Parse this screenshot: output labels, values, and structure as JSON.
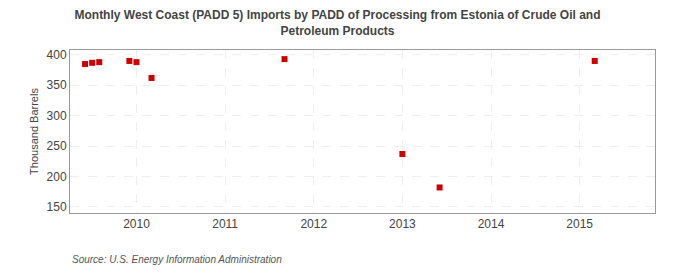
{
  "chart_data": {
    "type": "scatter",
    "title": "Monthly West Coast (PADD 5) Imports by PADD of Processing from Estonia of Crude Oil and\nPetroleum Products",
    "ylabel": "Thousand Barrels",
    "annotations": [
      "Source: U.S. Energy Information Administration"
    ],
    "x": [
      2009.42,
      2009.5,
      2009.58,
      2009.92,
      2010.0,
      2010.17,
      2011.67,
      2013.0,
      2013.42,
      2015.17
    ],
    "values": [
      385,
      387,
      388,
      390,
      388,
      362,
      393,
      237,
      182,
      390
    ],
    "color": "#cc0000",
    "marker": "square",
    "xlim": [
      2009.25,
      2015.85
    ],
    "xticks": [
      2010,
      2011,
      2012,
      2013,
      2014,
      2015
    ],
    "ylim": [
      140,
      408
    ],
    "yticks": [
      150,
      200,
      250,
      300,
      350,
      400
    ],
    "grid": true
  }
}
